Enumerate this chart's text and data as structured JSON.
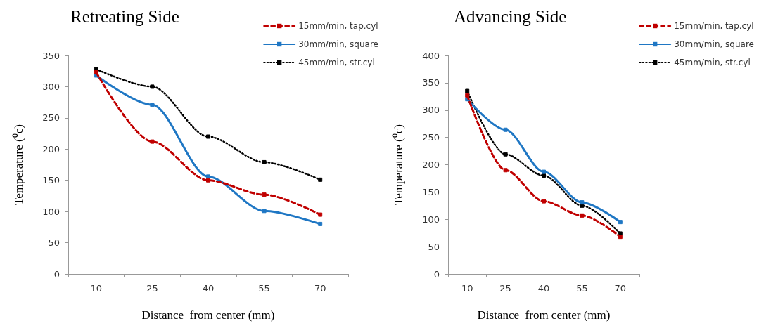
{
  "chart_data": [
    {
      "type": "line",
      "title": "Retreating Side",
      "xlabel": "Distance  from center (mm)",
      "ylabel": "Temperature (⁰c)",
      "categories": [
        "10",
        "25",
        "40",
        "55",
        "70"
      ],
      "ylim": [
        0,
        350
      ],
      "yticks": [
        0,
        50,
        100,
        150,
        200,
        250,
        300,
        350
      ],
      "grid": false,
      "legend": "top right",
      "marker": "square",
      "series": [
        {
          "name": "15mm/min, tap.cyl",
          "color": "#c00000",
          "line_style": "dashed",
          "values": [
            323,
            212,
            150,
            127,
            95
          ]
        },
        {
          "name": "30mm/min, square",
          "color": "#1f77c4",
          "line_style": "solid",
          "values": [
            318,
            271,
            156,
            101,
            80
          ]
        },
        {
          "name": "45mm/min, str.cyl",
          "color": "#000000",
          "line_style": "dotted",
          "values": [
            328,
            300,
            220,
            179,
            151
          ]
        }
      ]
    },
    {
      "type": "line",
      "title": "Advancing Side",
      "xlabel": "Distance  from center (mm)",
      "ylabel": "Temperature (⁰c)",
      "categories": [
        "10",
        "25",
        "40",
        "55",
        "70"
      ],
      "ylim": [
        0,
        400
      ],
      "yticks": [
        0,
        50,
        100,
        150,
        200,
        250,
        300,
        350,
        400
      ],
      "grid": false,
      "legend": "top right",
      "marker": "square",
      "series": [
        {
          "name": "15mm/min, tap.cyl",
          "color": "#c00000",
          "line_style": "dashed",
          "values": [
            327,
            190,
            133,
            107,
            68
          ]
        },
        {
          "name": "30mm/min, square",
          "color": "#1f77c4",
          "line_style": "solid",
          "values": [
            320,
            264,
            187,
            131,
            95
          ]
        },
        {
          "name": "45mm/min, str.cyl",
          "color": "#000000",
          "line_style": "dotted",
          "values": [
            335,
            219,
            180,
            125,
            74
          ]
        }
      ]
    }
  ]
}
